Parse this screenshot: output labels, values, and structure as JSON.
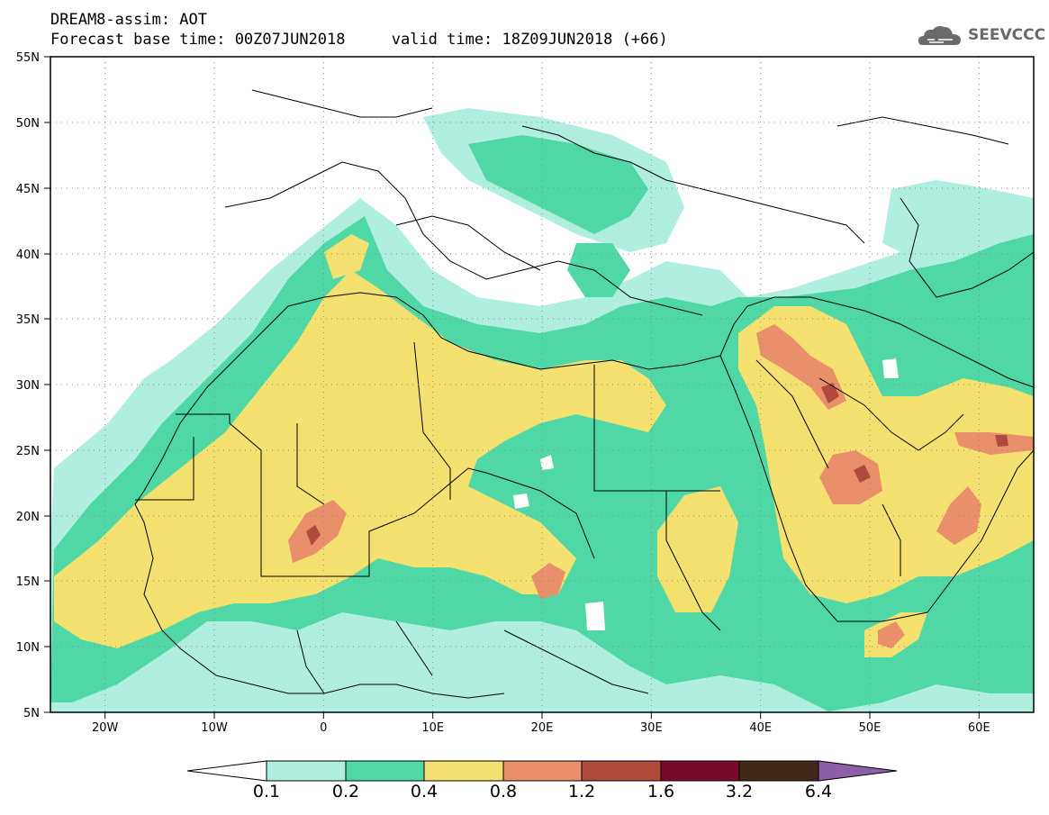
{
  "header": {
    "title": "DREAM8-assim: AOT",
    "base_label": "Forecast base time: 00Z07JUN2018",
    "valid_label": "valid time: 18Z09JUN2018 (+66)"
  },
  "logo": {
    "text": "SEEVCCC",
    "icon": "cloud-icon"
  },
  "map": {
    "lon_ticks": [
      "20W",
      "10W",
      "0",
      "10E",
      "20E",
      "30E",
      "40E",
      "50E",
      "60E"
    ],
    "lon_values": [
      -20,
      -10,
      0,
      10,
      20,
      30,
      40,
      50,
      60
    ],
    "lat_ticks": [
      "55N",
      "50N",
      "45N",
      "40N",
      "35N",
      "30N",
      "25N",
      "20N",
      "15N",
      "10N",
      "5N"
    ],
    "lat_values": [
      55,
      50,
      45,
      40,
      35,
      30,
      25,
      20,
      15,
      10,
      5
    ],
    "lon_range": [
      -25,
      65
    ],
    "lat_range": [
      5,
      55
    ],
    "grid": "dotted"
  },
  "colorbar": {
    "labels": [
      "0.1",
      "0.2",
      "0.4",
      "0.8",
      "1.2",
      "1.6",
      "3.2",
      "6.4"
    ],
    "colors": [
      "#ffffff",
      "#b0eee0",
      "#4fd7a5",
      "#f4e16f",
      "#e9906b",
      "#b04a3b",
      "#7a0a2c",
      "#3f2a1a",
      "#8c5fa8"
    ]
  }
}
